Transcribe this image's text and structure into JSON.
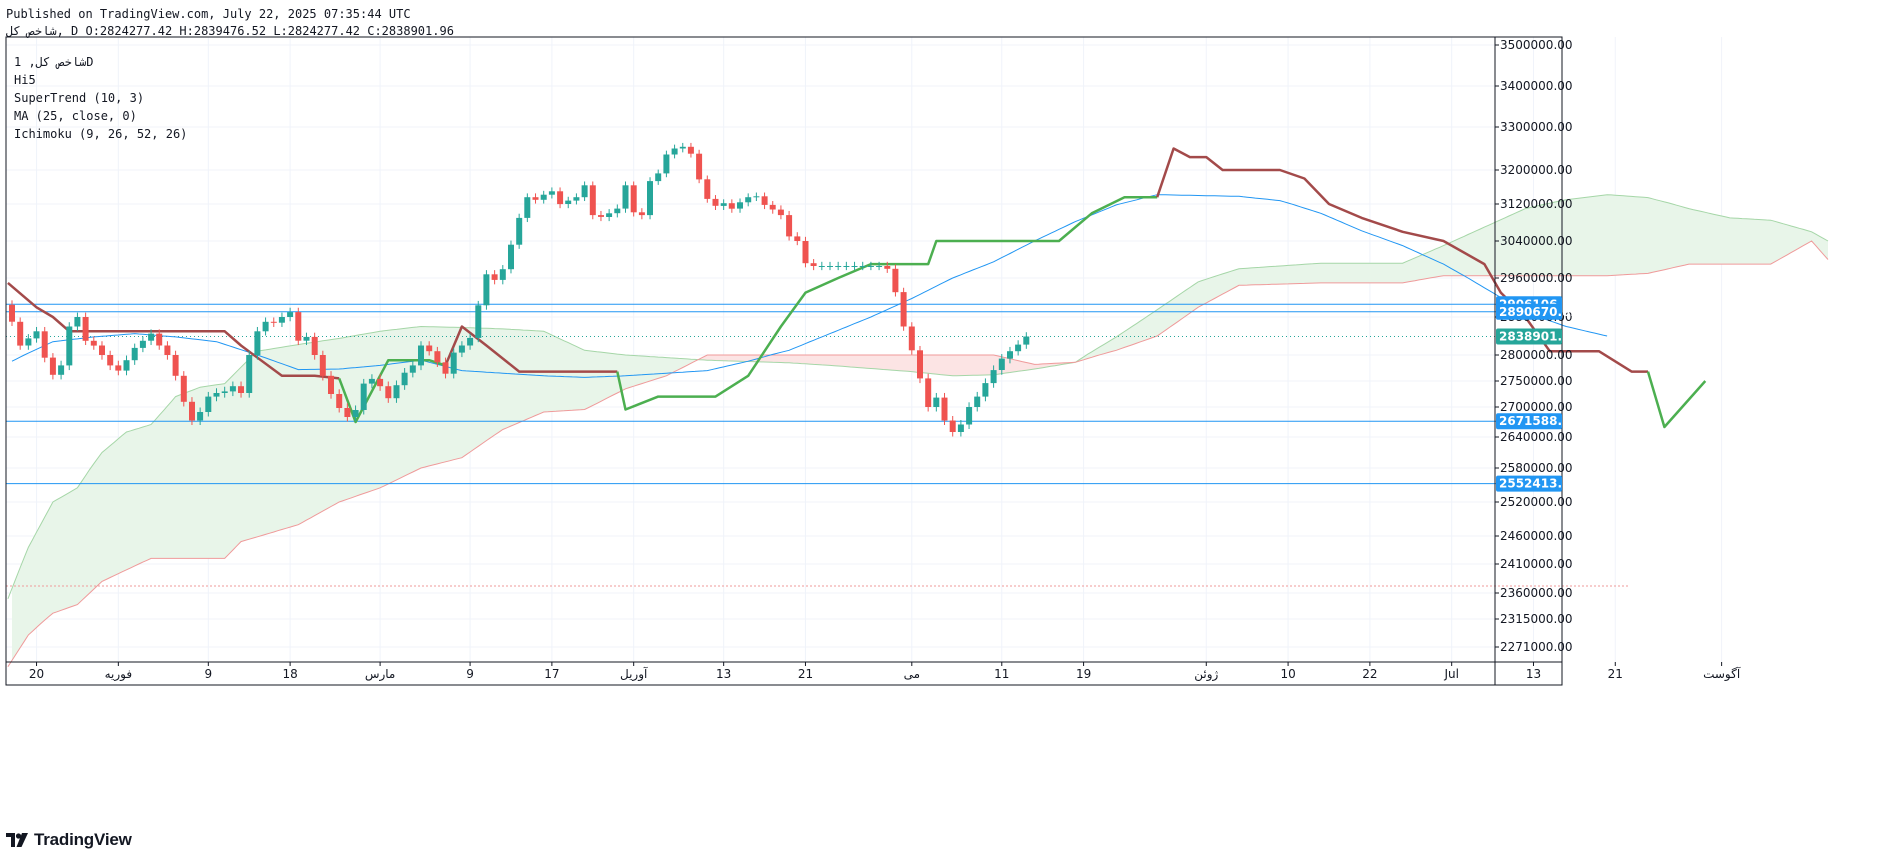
{
  "header": {
    "published": "Published on TradingView.com, July 22, 2025 07:35:44 UTC",
    "ohlc": "شاخص کل, D O:2824277.42 H:2839476.52 L:2824277.42 C:2838901.96"
  },
  "legend": {
    "symbol": "شاخص کل, 1D",
    "exchange": "Hi5",
    "indicators": [
      "SuperTrend (10, 3)",
      "MA (25, close, 0)",
      "Ichimoku (9, 26, 52, 26)"
    ]
  },
  "brand": {
    "name": "TradingView",
    "icon": "tradingview-logo-icon"
  },
  "colors": {
    "up": "#26a69a",
    "down": "#ef5350",
    "st_up": "#4caf50",
    "st_down": "#a34a4a",
    "ma": "#2196f3",
    "hline": "#2196f3",
    "cloud_bull": "#e8f5e9",
    "cloud_bear": "#fce4e4",
    "span_a": "#a5d6a7",
    "span_b": "#ef9a9a"
  },
  "chart_data": {
    "type": "candlestick",
    "title": "",
    "xlabel": "",
    "ylabel": "",
    "y_range": [
      2230000,
      3520000
    ],
    "last_price": 2838901.96,
    "y_ticks": [
      "3500000.00",
      "3400000.00",
      "3300000.00",
      "3200000.00",
      "3120000.00",
      "3040000.00",
      "2960000.00",
      "2880000.00",
      "2800000.00",
      "2750000.00",
      "2700000.00",
      "2640000.00",
      "2580000.00",
      "2520000.00",
      "2460000.00",
      "2410000.00",
      "2360000.00",
      "2315000.00",
      "2271000.00"
    ],
    "x_labels": [
      {
        "i": 3,
        "label": "20"
      },
      {
        "i": 13,
        "label": "فوریه"
      },
      {
        "i": 24,
        "label": "9"
      },
      {
        "i": 34,
        "label": "18"
      },
      {
        "i": 45,
        "label": "مارس"
      },
      {
        "i": 56,
        "label": "9"
      },
      {
        "i": 66,
        "label": "17"
      },
      {
        "i": 76,
        "label": "آوریل"
      },
      {
        "i": 87,
        "label": "13"
      },
      {
        "i": 97,
        "label": "21"
      },
      {
        "i": 110,
        "label": "می"
      },
      {
        "i": 121,
        "label": "11"
      },
      {
        "i": 131,
        "label": "19"
      },
      {
        "i": 146,
        "label": "ژوئن"
      },
      {
        "i": 156,
        "label": "10"
      },
      {
        "i": 166,
        "label": "22"
      },
      {
        "i": 176,
        "label": "Jul"
      },
      {
        "i": 186,
        "label": "13"
      },
      {
        "i": 196,
        "label": "21"
      },
      {
        "i": 209,
        "label": "آگوست"
      }
    ],
    "horizontal_levels": [
      2906106.47,
      2890670.82,
      2671588.25,
      2552413.8
    ],
    "candle_closes": [
      2870000,
      2820000,
      2835000,
      2850000,
      2795000,
      2762000,
      2780000,
      2860000,
      2880000,
      2830000,
      2820000,
      2800000,
      2780000,
      2770000,
      2790000,
      2815000,
      2830000,
      2845000,
      2820000,
      2800000,
      2760000,
      2710000,
      2673000,
      2690000,
      2720000,
      2727000,
      2730000,
      2740000,
      2727000,
      2800000,
      2850000,
      2870000,
      2868000,
      2880000,
      2890000,
      2830000,
      2838000,
      2800000,
      2760000,
      2725000,
      2698000,
      2680000,
      2694000,
      2745000,
      2754000,
      2740000,
      2717000,
      2742000,
      2766000,
      2780000,
      2820000,
      2808000,
      2786000,
      2764000,
      2805000,
      2820000,
      2836000,
      2904000,
      2968000,
      2956000,
      2979000,
      3032000,
      3090000,
      3136000,
      3130000,
      3142000,
      3150000,
      3120000,
      3128000,
      3136000,
      3164000,
      3096000,
      3092000,
      3100000,
      3110000,
      3164000,
      3102000,
      3096000,
      3174000,
      3192000,
      3236000,
      3250000,
      3254000,
      3238000,
      3178000,
      3132000,
      3116000,
      3122000,
      3110000,
      3124000,
      3136000,
      3138000,
      3118000,
      3108000,
      3096000,
      3050000,
      3040000,
      2992000,
      2986000,
      2986000,
      2986000,
      2986000,
      2986000,
      2986000,
      2986000,
      2986000,
      2986000,
      2980000,
      2931000,
      2860000,
      2810000,
      2755000,
      2700000,
      2718000,
      2673000,
      2650000,
      2665000,
      2700000,
      2720000,
      2746000,
      2771000,
      2793000,
      2808000,
      2822000,
      2839000
    ]
  }
}
